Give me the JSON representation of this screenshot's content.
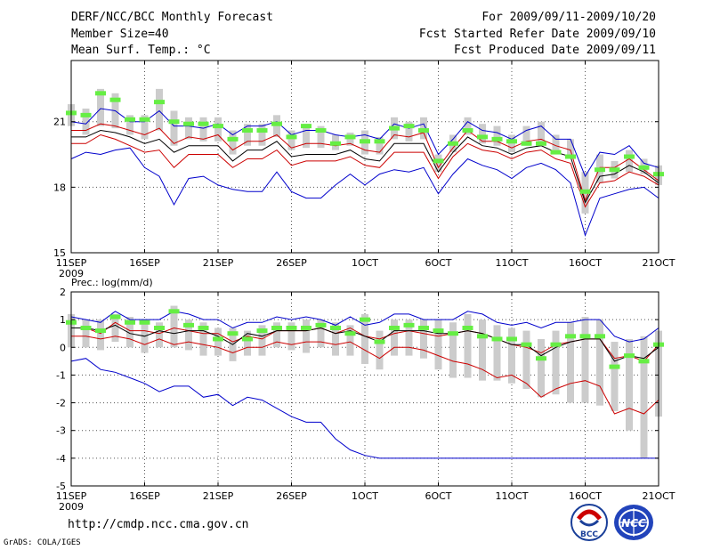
{
  "header": {
    "title": "DERF/NCC/BCC Monthly Forecast",
    "member_size": "Member Size=40",
    "variable": "Mean Surf. Temp.: °C",
    "period": "For 2009/09/11-2009/10/20",
    "started": "Fcst Started Refer Date 2009/09/10",
    "produced": "Fcst Produced Date 2009/09/11"
  },
  "footer": {
    "url": "http://cmdp.ncc.cma.gov.cn",
    "credit": "GrADS: COLA/IGES",
    "logo_left": "BCC",
    "logo_right": "NCC"
  },
  "colors": {
    "blue": "#0000cc",
    "red": "#cc0000",
    "black": "#000000",
    "green": "#66ee44",
    "gray": "#cccccc"
  },
  "chart_data": [
    {
      "type": "line",
      "title": "Mean Surf. Temp.: °C",
      "ylim": [
        15,
        23.8
      ],
      "yticks": [
        15,
        18,
        21
      ],
      "ytick_labels": [
        "15",
        "18",
        "21"
      ],
      "xlim": [
        1,
        41
      ],
      "xticks": [
        1,
        6,
        11,
        16,
        21,
        26,
        31,
        36,
        41
      ],
      "xtick_labels": [
        "11SEP",
        "16SEP",
        "21SEP",
        "26SEP",
        "1OCT",
        "6OCT",
        "11OCT",
        "16OCT",
        "21OCT"
      ],
      "year_label": "2009",
      "series": [
        {
          "name": "max",
          "color": "#0000cc",
          "values": [
            21.0,
            20.9,
            21.6,
            21.5,
            21.0,
            21.0,
            21.5,
            20.8,
            20.8,
            20.7,
            20.9,
            20.4,
            20.8,
            20.8,
            21.0,
            20.4,
            20.6,
            20.6,
            20.4,
            20.3,
            20.4,
            20.2,
            20.9,
            20.7,
            20.9,
            19.5,
            20.2,
            21.0,
            20.6,
            20.5,
            20.2,
            20.6,
            20.8,
            20.2,
            20.2,
            18.5,
            19.6,
            19.5,
            19.9,
            19.1,
            18.9
          ]
        },
        {
          "name": "upper",
          "color": "#cc0000",
          "values": [
            20.6,
            20.6,
            20.9,
            20.8,
            20.6,
            20.4,
            20.7,
            20.0,
            20.3,
            20.2,
            20.4,
            19.7,
            20.1,
            20.1,
            20.4,
            19.8,
            20.0,
            20.0,
            19.9,
            20.0,
            19.7,
            19.6,
            20.4,
            20.3,
            20.5,
            18.9,
            19.8,
            20.6,
            20.1,
            20.1,
            19.8,
            20.1,
            20.2,
            19.9,
            19.7,
            17.4,
            18.9,
            18.9,
            19.3,
            18.8,
            18.3
          ]
        },
        {
          "name": "mean",
          "color": "#000000",
          "values": [
            20.3,
            20.3,
            20.6,
            20.5,
            20.3,
            20.0,
            20.2,
            19.6,
            19.9,
            19.9,
            19.9,
            19.2,
            19.7,
            19.7,
            20.1,
            19.4,
            19.5,
            19.5,
            19.5,
            19.7,
            19.3,
            19.2,
            20.0,
            20.0,
            20.0,
            18.7,
            19.6,
            20.3,
            19.9,
            19.8,
            19.5,
            19.8,
            19.9,
            19.6,
            19.4,
            17.3,
            18.5,
            18.6,
            19.0,
            18.7,
            18.2
          ]
        },
        {
          "name": "lower",
          "color": "#cc0000",
          "values": [
            20.0,
            20.0,
            20.4,
            20.2,
            19.9,
            19.6,
            19.7,
            18.9,
            19.5,
            19.5,
            19.5,
            18.9,
            19.3,
            19.3,
            19.7,
            19.0,
            19.2,
            19.2,
            19.2,
            19.4,
            19.0,
            18.9,
            19.6,
            19.6,
            19.6,
            18.4,
            19.4,
            20.0,
            19.7,
            19.6,
            19.3,
            19.6,
            19.7,
            19.3,
            19.1,
            17.1,
            18.2,
            18.3,
            18.7,
            18.5,
            18.1
          ]
        },
        {
          "name": "min",
          "color": "#0000cc",
          "values": [
            19.3,
            19.6,
            19.5,
            19.7,
            19.8,
            18.9,
            18.5,
            17.2,
            18.4,
            18.5,
            18.1,
            17.9,
            17.8,
            17.8,
            18.7,
            17.8,
            17.5,
            17.5,
            18.1,
            18.6,
            18.1,
            18.6,
            18.8,
            18.7,
            18.9,
            17.7,
            18.6,
            19.3,
            19.0,
            18.8,
            18.4,
            18.9,
            19.1,
            18.8,
            18.2,
            15.8,
            17.5,
            17.7,
            17.9,
            18.0,
            17.5
          ]
        },
        {
          "name": "observed",
          "color": "#66ee44",
          "values": [
            21.4,
            21.3,
            22.3,
            22.0,
            21.1,
            21.1,
            21.9,
            21.0,
            20.9,
            20.9,
            20.8,
            20.2,
            20.6,
            20.6,
            20.9,
            20.3,
            20.8,
            20.6,
            20.0,
            20.3,
            20.1,
            20.1,
            20.7,
            20.8,
            20.6,
            19.2,
            20.0,
            20.6,
            20.3,
            20.2,
            20.1,
            20.0,
            20.0,
            19.6,
            19.4,
            17.8,
            18.8,
            18.8,
            19.4,
            18.9,
            18.6
          ]
        },
        {
          "name": "box_top",
          "color": "#cccccc",
          "values": [
            21.8,
            21.6,
            22.5,
            22.3,
            21.3,
            21.3,
            22.5,
            21.5,
            21.2,
            21.2,
            21.2,
            20.6,
            20.9,
            20.9,
            21.3,
            20.6,
            20.9,
            20.8,
            20.4,
            20.5,
            20.6,
            20.3,
            21.2,
            21.0,
            21.2,
            19.5,
            20.4,
            21.2,
            20.9,
            20.8,
            20.4,
            20.8,
            21.0,
            20.4,
            20.2,
            18.7,
            19.5,
            19.2,
            19.7,
            19.3,
            19.0
          ]
        },
        {
          "name": "box_bottom",
          "color": "#cccccc",
          "values": [
            20.8,
            20.4,
            20.8,
            20.7,
            20.4,
            20.2,
            20.6,
            19.9,
            20.2,
            20.1,
            20.1,
            19.5,
            19.9,
            19.9,
            20.3,
            19.7,
            19.8,
            19.8,
            19.7,
            19.9,
            19.5,
            19.5,
            20.2,
            20.1,
            20.2,
            18.7,
            19.6,
            20.4,
            20.0,
            19.9,
            19.6,
            19.9,
            20.0,
            19.7,
            19.3,
            16.8,
            18.2,
            18.4,
            18.7,
            18.6,
            18.1
          ]
        }
      ]
    },
    {
      "type": "line",
      "title": "Prec.: log(mm/d)",
      "ylim": [
        -5,
        2
      ],
      "yticks": [
        -5,
        -4,
        -3,
        -2,
        -1,
        0,
        1,
        2
      ],
      "ytick_labels": [
        "-5",
        "-4",
        "-3",
        "-2",
        "-1",
        "0",
        "1",
        "2"
      ],
      "xlim": [
        1,
        41
      ],
      "xticks": [
        1,
        6,
        11,
        16,
        21,
        26,
        31,
        36,
        41
      ],
      "xtick_labels": [
        "11SEP",
        "16SEP",
        "21SEP",
        "26SEP",
        "1OCT",
        "6OCT",
        "11OCT",
        "16OCT",
        "21OCT"
      ],
      "year_label": "2009",
      "series": [
        {
          "name": "max",
          "color": "#0000cc",
          "values": [
            1.1,
            1.0,
            0.9,
            1.3,
            1.0,
            1.0,
            1.0,
            1.3,
            1.2,
            1.0,
            1.0,
            0.7,
            0.9,
            0.9,
            1.1,
            1.0,
            1.1,
            1.0,
            0.8,
            1.1,
            0.8,
            0.9,
            1.2,
            1.2,
            1.0,
            1.0,
            1.0,
            1.3,
            1.2,
            0.9,
            0.8,
            0.9,
            0.7,
            0.9,
            0.9,
            1.0,
            1.0,
            0.4,
            0.2,
            0.3,
            0.7
          ]
        },
        {
          "name": "upper",
          "color": "#cc0000",
          "values": [
            0.7,
            0.7,
            0.5,
            0.9,
            0.6,
            0.6,
            0.5,
            0.7,
            0.6,
            0.5,
            0.5,
            0.2,
            0.4,
            0.3,
            0.6,
            0.6,
            0.6,
            0.7,
            0.5,
            0.7,
            0.4,
            0.3,
            0.5,
            0.6,
            0.5,
            0.4,
            0.5,
            0.6,
            0.5,
            0.3,
            0.1,
            0.0,
            -0.2,
            0.1,
            0.2,
            0.3,
            0.3,
            -0.4,
            -0.3,
            -0.5,
            0.1
          ]
        },
        {
          "name": "mean",
          "color": "#000000",
          "values": [
            0.7,
            0.7,
            0.6,
            0.8,
            0.5,
            0.4,
            0.6,
            0.5,
            0.6,
            0.6,
            0.4,
            0.1,
            0.5,
            0.4,
            0.6,
            0.6,
            0.6,
            0.7,
            0.5,
            0.6,
            0.4,
            0.2,
            0.6,
            0.6,
            0.6,
            0.5,
            0.5,
            0.6,
            0.5,
            0.3,
            0.1,
            0.1,
            -0.3,
            0.0,
            0.2,
            0.3,
            0.3,
            -0.5,
            -0.3,
            -0.4,
            0.0
          ]
        },
        {
          "name": "lower",
          "color": "#cc0000",
          "values": [
            0.4,
            0.4,
            0.3,
            0.4,
            0.3,
            0.1,
            0.3,
            0.1,
            0.2,
            0.1,
            0.0,
            -0.2,
            0.0,
            0.0,
            0.2,
            0.1,
            0.2,
            0.2,
            0.1,
            0.2,
            -0.1,
            -0.4,
            0.0,
            0.0,
            -0.1,
            -0.3,
            -0.5,
            -0.6,
            -0.8,
            -1.1,
            -1.0,
            -1.3,
            -1.8,
            -1.5,
            -1.3,
            -1.2,
            -1.4,
            -2.4,
            -2.2,
            -2.4,
            -1.9
          ]
        },
        {
          "name": "min",
          "color": "#0000cc",
          "values": [
            -0.5,
            -0.4,
            -0.8,
            -0.9,
            -1.1,
            -1.3,
            -1.6,
            -1.4,
            -1.4,
            -1.8,
            -1.7,
            -2.1,
            -1.8,
            -1.9,
            -2.2,
            -2.5,
            -2.7,
            -2.7,
            -3.3,
            -3.7,
            -3.9,
            -4.0,
            -4.0,
            -4.0,
            -4.0,
            -4.0,
            -4.0,
            -4.0,
            -4.0,
            -4.0,
            -4.0,
            -4.0,
            -4.0,
            -4.0,
            -4.0,
            -4.0,
            -4.0,
            -4.0,
            -4.0,
            -4.0,
            -4.0
          ]
        },
        {
          "name": "observed",
          "color": "#66ee44",
          "values": [
            0.9,
            0.7,
            0.6,
            1.1,
            0.9,
            0.9,
            0.7,
            1.3,
            0.8,
            0.7,
            0.3,
            0.5,
            0.3,
            0.6,
            0.7,
            0.7,
            0.7,
            0.8,
            0.7,
            0.5,
            1.0,
            0.2,
            0.7,
            0.8,
            0.7,
            0.6,
            0.5,
            0.7,
            0.4,
            0.3,
            0.3,
            0.1,
            -0.4,
            0.1,
            0.4,
            0.4,
            0.4,
            -0.7,
            -0.3,
            -0.5,
            0.1
          ]
        },
        {
          "name": "box_top",
          "color": "#cccccc",
          "values": [
            1.2,
            1.0,
            1.0,
            1.2,
            1.1,
            1.0,
            0.9,
            1.5,
            1.0,
            0.9,
            0.7,
            0.7,
            0.6,
            0.8,
            0.9,
            0.9,
            1.0,
            1.0,
            0.9,
            0.8,
            1.2,
            0.6,
            1.0,
            1.0,
            1.0,
            1.0,
            0.9,
            1.2,
            1.0,
            0.8,
            0.7,
            0.6,
            0.3,
            0.6,
            0.9,
            1.1,
            1.0,
            0.2,
            0.3,
            0.4,
            0.6
          ]
        },
        {
          "name": "box_bottom",
          "color": "#cccccc",
          "values": [
            0.0,
            0.0,
            -0.1,
            0.2,
            0.0,
            -0.2,
            0.0,
            0.0,
            -0.1,
            -0.3,
            -0.3,
            -0.5,
            -0.3,
            -0.3,
            0.0,
            -0.1,
            -0.2,
            0.0,
            -0.3,
            -0.3,
            -0.6,
            -0.8,
            -0.3,
            -0.3,
            -0.4,
            -0.8,
            -1.1,
            -1.1,
            -1.2,
            -1.2,
            -1.3,
            -1.5,
            -1.8,
            -1.7,
            -2.0,
            -2.0,
            -2.1,
            -2.3,
            -3.0,
            -4.0,
            -2.5
          ]
        }
      ]
    }
  ]
}
